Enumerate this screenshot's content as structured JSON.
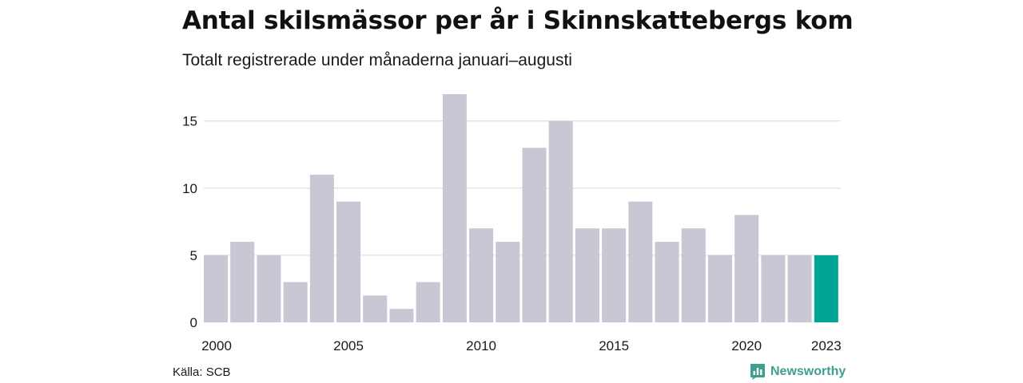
{
  "title": "Antal skilsmässor per år i Skinnskattebergs kommun",
  "subtitle": "Totalt registrerade under månaderna januari–augusti",
  "source": "Källa: SCB",
  "brand": {
    "name": "Newsworthy",
    "icon": "newsworthy-logo-icon",
    "color": "#3f9e8f"
  },
  "colors": {
    "bar": "#c8c7d3",
    "highlight": "#00a596",
    "grid": "#e0e0e0"
  },
  "chart_data": {
    "type": "bar",
    "categories": [
      "2000",
      "2001",
      "2002",
      "2003",
      "2004",
      "2005",
      "2006",
      "2007",
      "2008",
      "2009",
      "2010",
      "2011",
      "2012",
      "2013",
      "2014",
      "2015",
      "2016",
      "2017",
      "2018",
      "2019",
      "2020",
      "2021",
      "2022",
      "2023"
    ],
    "values": [
      5,
      6,
      5,
      3,
      11,
      9,
      2,
      1,
      3,
      17,
      7,
      6,
      13,
      15,
      7,
      7,
      9,
      6,
      7,
      5,
      8,
      5,
      5,
      5
    ],
    "highlight_category": "2023",
    "title": "Antal skilsmässor per år i Skinnskattebergs kommun",
    "subtitle": "Totalt registrerade under månaderna januari–augusti",
    "xlabel": "",
    "ylabel": "",
    "ylim": [
      0,
      17
    ],
    "yticks": [
      0,
      5,
      10,
      15
    ],
    "xtick_labels": [
      "2000",
      "2005",
      "2010",
      "2015",
      "2020",
      "2023"
    ],
    "grid": true,
    "legend": "none"
  }
}
